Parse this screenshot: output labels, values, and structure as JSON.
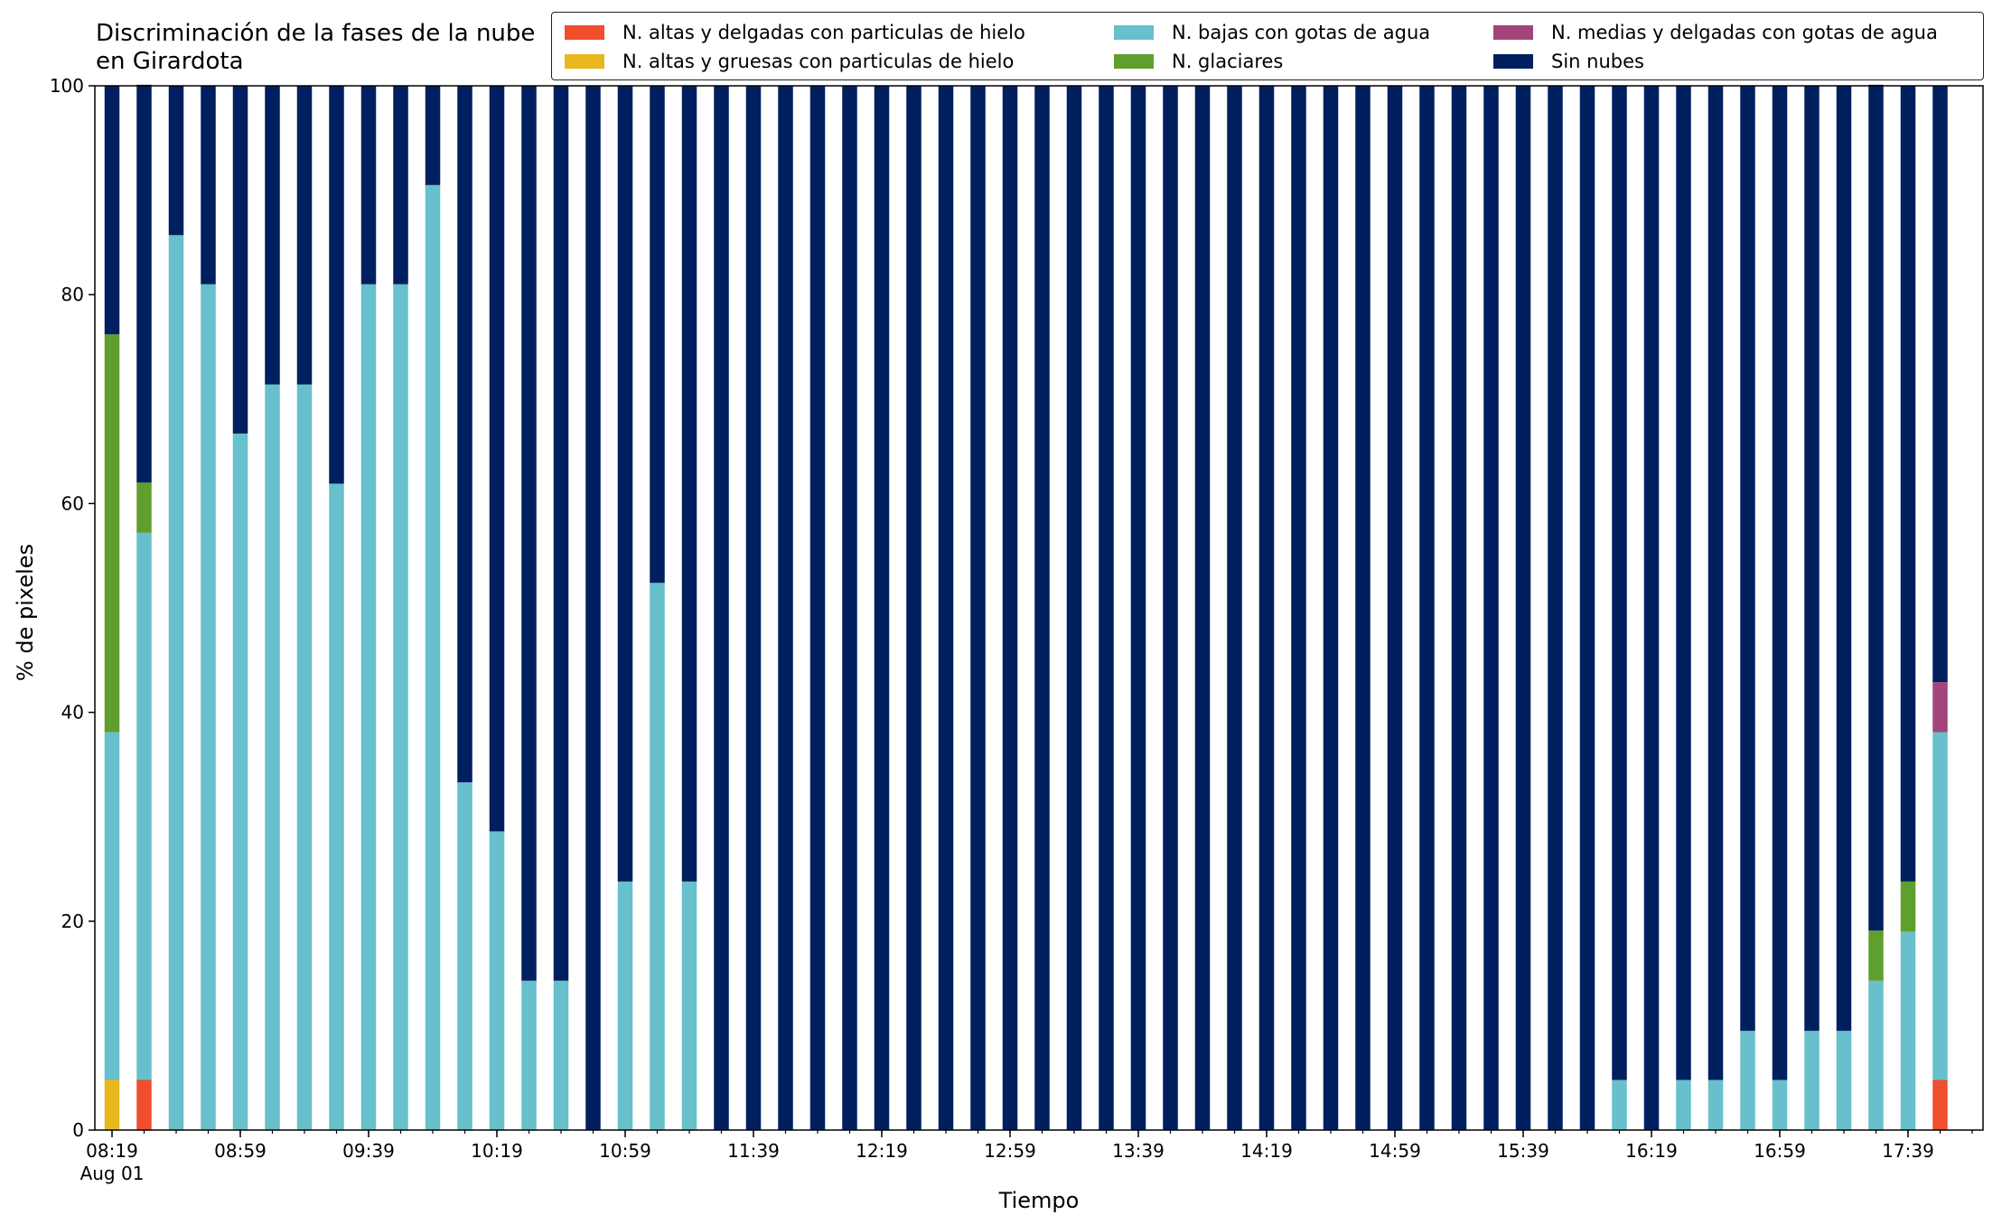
{
  "chart_data": {
    "type": "bar",
    "stacked": true,
    "title": "Discriminación de la fases de la nube en Girardota",
    "xlabel": "Tiempo",
    "ylabel": "% de pixeles",
    "ylim": [
      0,
      100
    ],
    "yticks": [
      "0",
      "20",
      "40",
      "60",
      "80",
      "100"
    ],
    "xticks": [
      {
        "index": 0,
        "label": "08:19",
        "sublabel": "Aug 01"
      },
      {
        "index": 4,
        "label": "08:59"
      },
      {
        "index": 8,
        "label": "09:39"
      },
      {
        "index": 12,
        "label": "10:19"
      },
      {
        "index": 16,
        "label": "10:59"
      },
      {
        "index": 20,
        "label": "11:39"
      },
      {
        "index": 24,
        "label": "12:19"
      },
      {
        "index": 28,
        "label": "12:59"
      },
      {
        "index": 32,
        "label": "13:39"
      },
      {
        "index": 36,
        "label": "14:19"
      },
      {
        "index": 40,
        "label": "14:59"
      },
      {
        "index": 44,
        "label": "15:39"
      },
      {
        "index": 48,
        "label": "16:19"
      },
      {
        "index": 52,
        "label": "16:59"
      },
      {
        "index": 56,
        "label": "17:39"
      }
    ],
    "categories": [
      "08:19",
      "08:29",
      "08:39",
      "08:49",
      "08:59",
      "09:09",
      "09:19",
      "09:29",
      "09:39",
      "09:49",
      "09:59",
      "10:09",
      "10:19",
      "10:29",
      "10:39",
      "10:49",
      "10:59",
      "11:09",
      "11:19",
      "11:29",
      "11:39",
      "11:49",
      "11:59",
      "12:09",
      "12:19",
      "12:29",
      "12:39",
      "12:49",
      "12:59",
      "13:09",
      "13:19",
      "13:29",
      "13:39",
      "13:49",
      "13:59",
      "14:09",
      "14:19",
      "14:29",
      "14:39",
      "14:49",
      "14:59",
      "15:09",
      "15:19",
      "15:29",
      "15:39",
      "15:49",
      "15:59",
      "16:09",
      "16:19",
      "16:29",
      "16:39",
      "16:49",
      "16:59",
      "17:09",
      "17:19",
      "17:29",
      "17:39",
      "17:49"
    ],
    "series": [
      {
        "name": "N. altas y delgadas con particulas de hielo",
        "color": "#f04e2d",
        "values": [
          0,
          4.8,
          0,
          0,
          0,
          0,
          0,
          0,
          0,
          0,
          0,
          0,
          0,
          0,
          0,
          0,
          0,
          0,
          0,
          0,
          0,
          0,
          0,
          0,
          0,
          0,
          0,
          0,
          0,
          0,
          0,
          0,
          0,
          0,
          0,
          0,
          0,
          0,
          0,
          0,
          0,
          0,
          0,
          0,
          0,
          0,
          0,
          0,
          0,
          0,
          0,
          0,
          0,
          0,
          0,
          0,
          0,
          4.8
        ]
      },
      {
        "name": "N. altas y gruesas con particulas de hielo",
        "color": "#e8b81c",
        "values": [
          4.8,
          0,
          0,
          0,
          0,
          0,
          0,
          0,
          0,
          0,
          0,
          0,
          0,
          0,
          0,
          0,
          0,
          0,
          0,
          0,
          0,
          0,
          0,
          0,
          0,
          0,
          0,
          0,
          0,
          0,
          0,
          0,
          0,
          0,
          0,
          0,
          0,
          0,
          0,
          0,
          0,
          0,
          0,
          0,
          0,
          0,
          0,
          0,
          0,
          0,
          0,
          0,
          0,
          0,
          0,
          0,
          0,
          0
        ]
      },
      {
        "name": "N. bajas con gotas de agua",
        "color": "#67c0cb",
        "values": [
          33.3,
          52.4,
          85.7,
          81.0,
          66.7,
          71.4,
          71.4,
          61.9,
          81.0,
          81.0,
          90.5,
          33.3,
          28.6,
          14.3,
          14.3,
          0,
          23.8,
          52.4,
          23.8,
          0,
          0,
          0,
          0,
          0,
          0,
          0,
          0,
          0,
          0,
          0,
          0,
          0,
          0,
          0,
          0,
          0,
          0,
          0,
          0,
          0,
          0,
          0,
          0,
          0,
          0,
          0,
          0,
          4.8,
          0,
          4.8,
          4.8,
          9.5,
          4.8,
          9.5,
          9.5,
          14.3,
          19.0,
          33.3
        ]
      },
      {
        "name": "N. glaciares",
        "color": "#5e9f2d",
        "values": [
          38.1,
          4.8,
          0,
          0,
          0,
          0,
          0,
          0,
          0,
          0,
          0,
          0,
          0,
          0,
          0,
          0,
          0,
          0,
          0,
          0,
          0,
          0,
          0,
          0,
          0,
          0,
          0,
          0,
          0,
          0,
          0,
          0,
          0,
          0,
          0,
          0,
          0,
          0,
          0,
          0,
          0,
          0,
          0,
          0,
          0,
          0,
          0,
          0,
          0,
          0,
          0,
          0,
          0,
          0,
          0,
          4.8,
          4.8,
          0
        ]
      },
      {
        "name": "N. medias y delgadas con gotas de agua",
        "color": "#a3457a",
        "values": [
          0,
          0,
          0,
          0,
          0,
          0,
          0,
          0,
          0,
          0,
          0,
          0,
          0,
          0,
          0,
          0,
          0,
          0,
          0,
          0,
          0,
          0,
          0,
          0,
          0,
          0,
          0,
          0,
          0,
          0,
          0,
          0,
          0,
          0,
          0,
          0,
          0,
          0,
          0,
          0,
          0,
          0,
          0,
          0,
          0,
          0,
          0,
          0,
          0,
          0,
          0,
          0,
          0,
          0,
          0,
          0,
          0,
          4.8
        ]
      },
      {
        "name": "Sin nubes",
        "color": "#001f5f",
        "values": [
          23.8,
          38.1,
          14.3,
          19.0,
          33.3,
          28.6,
          28.6,
          38.1,
          19.0,
          19.0,
          9.5,
          66.7,
          71.4,
          85.7,
          85.7,
          100,
          76.2,
          47.6,
          76.2,
          100,
          100,
          100,
          100,
          100,
          100,
          100,
          100,
          100,
          100,
          100,
          100,
          100,
          100,
          100,
          100,
          100,
          100,
          100,
          100,
          100,
          100,
          100,
          100,
          100,
          100,
          100,
          100,
          95.2,
          100,
          95.2,
          95.2,
          90.5,
          95.2,
          90.5,
          90.5,
          81.0,
          76.2,
          57.1
        ]
      }
    ],
    "legend": {
      "placement": "top-right",
      "columns": 3
    },
    "grid": false
  }
}
